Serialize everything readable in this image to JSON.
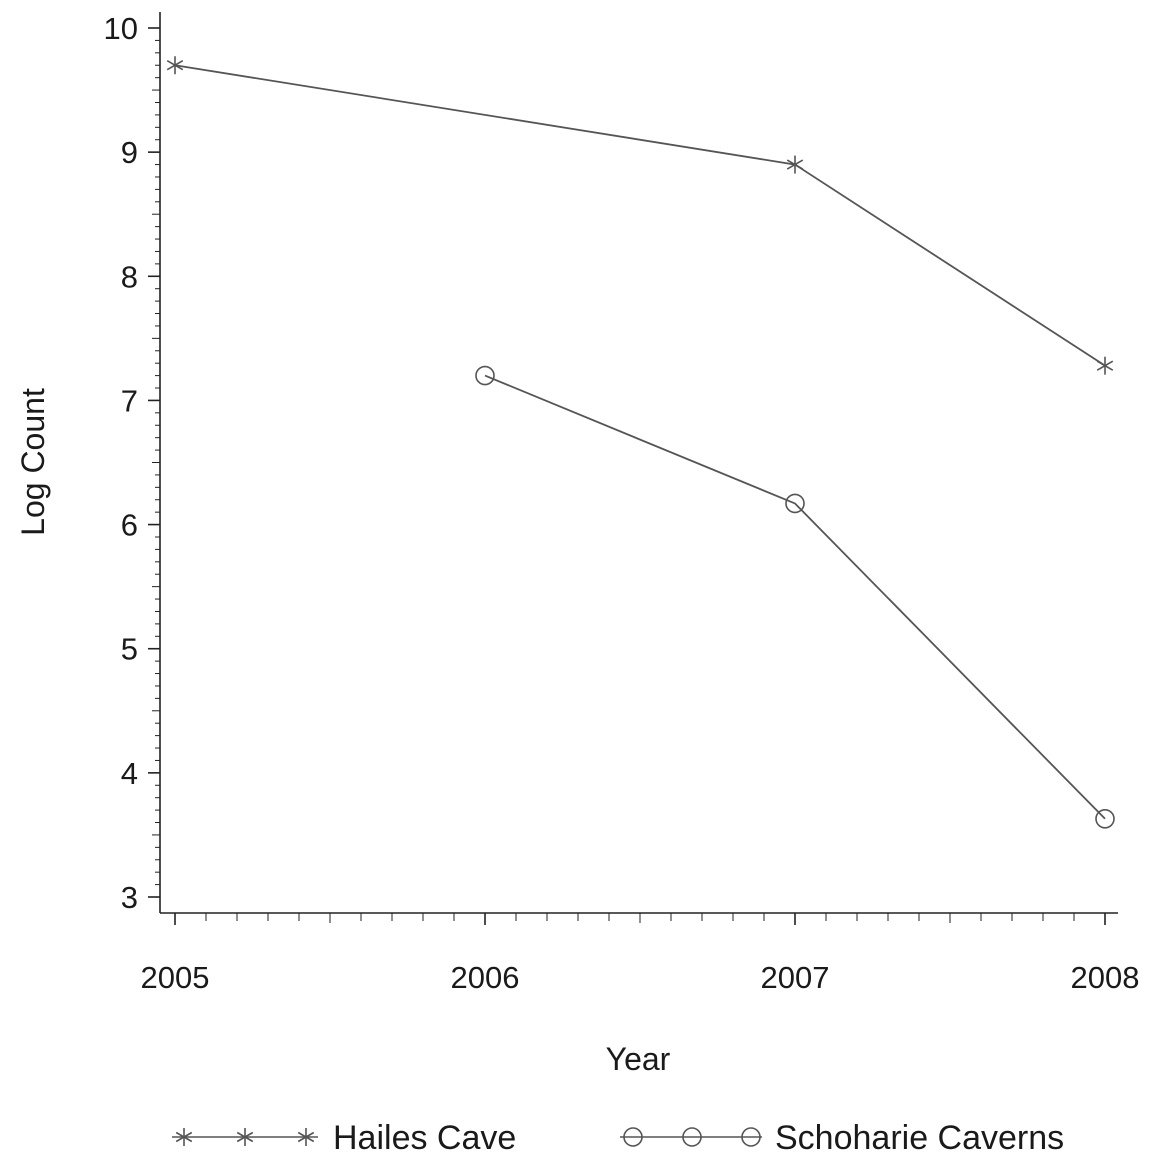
{
  "chart_data": {
    "type": "line",
    "title": "",
    "xlabel": "Year",
    "ylabel": "Log Count",
    "x_ticks": [
      "2005",
      "2006",
      "2007",
      "2008"
    ],
    "y_ticks": [
      "3",
      "4",
      "5",
      "6",
      "7",
      "8",
      "9",
      "10"
    ],
    "xlim": [
      2005,
      2008
    ],
    "ylim": [
      3,
      10
    ],
    "grid": false,
    "legend_position": "bottom",
    "series": [
      {
        "name": "Hailes Cave",
        "marker": "asterisk",
        "color": "#555555",
        "x": [
          2005,
          2007,
          2008
        ],
        "y": [
          9.7,
          8.9,
          7.28
        ]
      },
      {
        "name": "Schoharie Caverns",
        "marker": "circle",
        "color": "#555555",
        "x": [
          2006,
          2007,
          2008
        ],
        "y": [
          7.2,
          6.17,
          3.63
        ]
      }
    ]
  }
}
